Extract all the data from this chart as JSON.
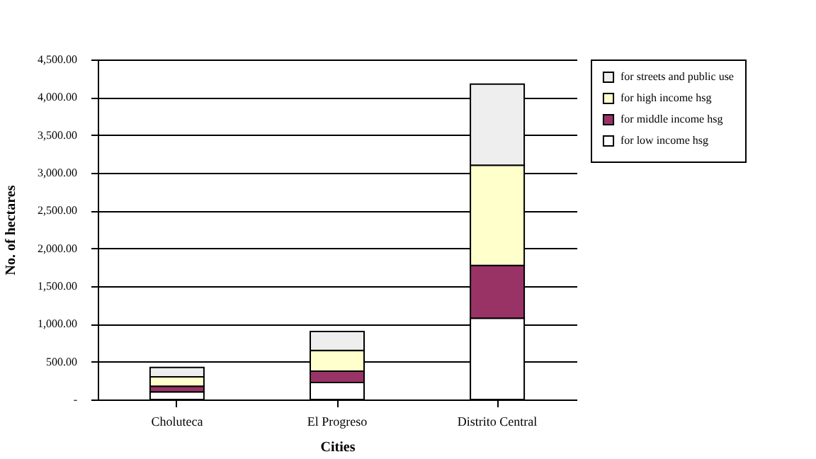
{
  "chart_data": {
    "type": "bar",
    "stacked": true,
    "xlabel": "Cities",
    "ylabel": "No. of hectares",
    "categories": [
      "Choluteca",
      "El Progreso",
      "Distrito Central"
    ],
    "series": [
      {
        "name": "for low income hsg",
        "color": "#ffffff",
        "values": [
          100,
          225,
          1075
        ]
      },
      {
        "name": "for middle income hsg",
        "color": "#993366",
        "values": [
          75,
          150,
          700
        ]
      },
      {
        "name": "for high income hsg",
        "color": "#ffffcc",
        "values": [
          125,
          275,
          1325
        ]
      },
      {
        "name": "for streets and public use",
        "color": "#eeeeee",
        "values": [
          125,
          250,
          1075
        ]
      }
    ],
    "ylim": [
      0,
      4500
    ],
    "yticks": [
      {
        "value": 0,
        "label": "-"
      },
      {
        "value": 500,
        "label": "500.00"
      },
      {
        "value": 1000,
        "label": "1,000.00"
      },
      {
        "value": 1500,
        "label": "1,500.00"
      },
      {
        "value": 2000,
        "label": "2,000.00"
      },
      {
        "value": 2500,
        "label": "2,500.00"
      },
      {
        "value": 3000,
        "label": "3,000.00"
      },
      {
        "value": 3500,
        "label": "3,500.00"
      },
      {
        "value": 4000,
        "label": "4,000.00"
      },
      {
        "value": 4500,
        "label": "4,500.00"
      }
    ],
    "grid": "y",
    "legend": "right"
  }
}
